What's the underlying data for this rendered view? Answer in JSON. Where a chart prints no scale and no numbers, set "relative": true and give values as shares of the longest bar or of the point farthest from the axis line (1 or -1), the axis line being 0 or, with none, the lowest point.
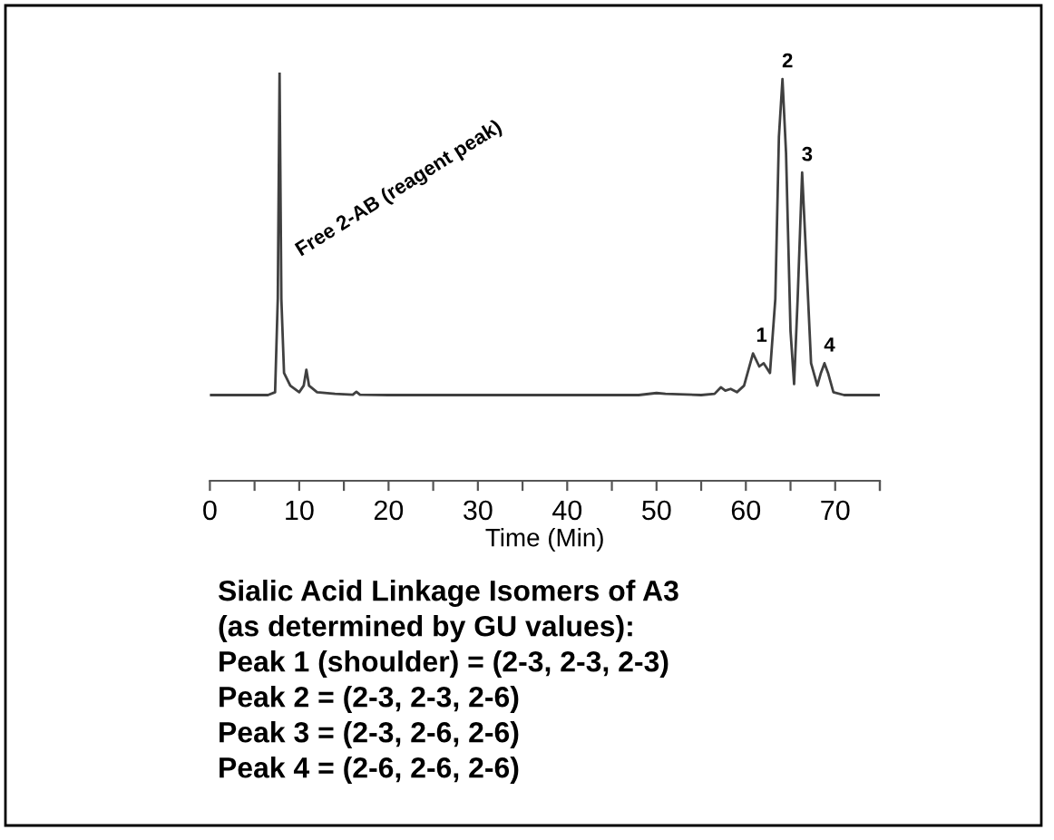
{
  "chart_data": {
    "type": "line",
    "relative": true,
    "xlabel": "Time (Min)",
    "xlim": [
      0,
      75
    ],
    "xticks": [
      0,
      10,
      20,
      30,
      40,
      50,
      60,
      70
    ],
    "grid": false,
    "legend": false,
    "marker": "none",
    "line_style": "solid",
    "series": [
      {
        "color": "#404040",
        "x": [
          0,
          6.5,
          7.3,
          7.6,
          7.8,
          8.0,
          8.3,
          9,
          10,
          10.5,
          10.8,
          11.1,
          12,
          14,
          16,
          16.4,
          16.8,
          20,
          48,
          50,
          51,
          55,
          56.5,
          57.2,
          57.7,
          58.3,
          59,
          59.8,
          60.8,
          61.5,
          62,
          62.7,
          63.3,
          63.7,
          64.1,
          64.5,
          65,
          65.4,
          65.8,
          66.3,
          66.8,
          67.3,
          68,
          68.4,
          68.8,
          69.2,
          69.8,
          71,
          75
        ],
        "values": [
          0.21,
          0.21,
          0.217,
          0.446,
          1.0,
          0.446,
          0.264,
          0.233,
          0.217,
          0.233,
          0.272,
          0.233,
          0.217,
          0.213,
          0.211,
          0.218,
          0.211,
          0.21,
          0.21,
          0.215,
          0.213,
          0.21,
          0.213,
          0.229,
          0.221,
          0.225,
          0.217,
          0.233,
          0.312,
          0.28,
          0.288,
          0.264,
          0.446,
          0.842,
          0.984,
          0.802,
          0.367,
          0.237,
          0.446,
          0.755,
          0.525,
          0.288,
          0.233,
          0.264,
          0.288,
          0.264,
          0.217,
          0.21,
          0.21
        ]
      }
    ],
    "annotations": [
      "Free 2-AB (reagent peak)",
      {
        "text": "1",
        "x": 61.2,
        "y": 0.312
      },
      {
        "text": "2",
        "x": 64.1,
        "y": 0.984
      },
      {
        "text": "3",
        "x": 66.3,
        "y": 0.755
      },
      {
        "text": "4",
        "x": 68.8,
        "y": 0.288
      },
      "Sialic Acid Linkage Isomers of A3",
      "(as determined by GU values):",
      "Peak 1 (shoulder) = (2-3, 2-3, 2-3)",
      "Peak 2 = (2-3, 2-3, 2-6)",
      "Peak 3 = (2-3, 2-6, 2-6)",
      "Peak 4 = (2-6, 2-6, 2-6)"
    ]
  }
}
